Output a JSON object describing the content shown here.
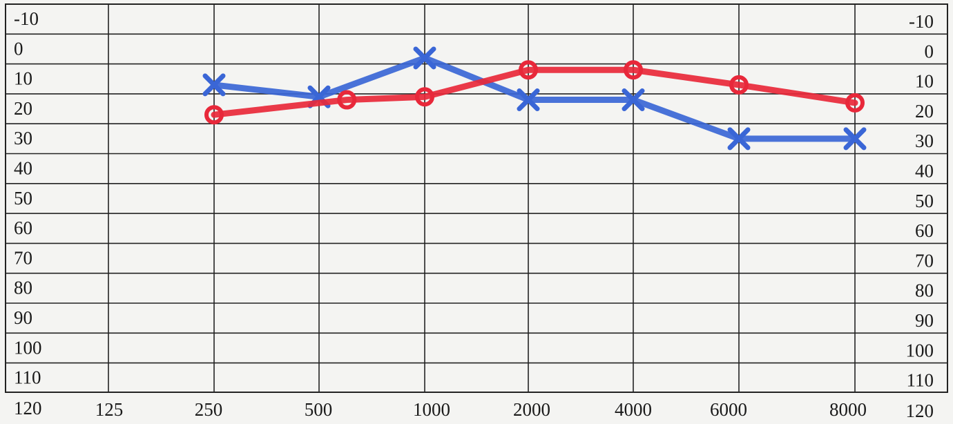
{
  "chart_data": {
    "type": "line",
    "title": "",
    "xlabel": "",
    "ylabel": "",
    "x_categories": [
      "125",
      "250",
      "500",
      "1000",
      "2000",
      "4000",
      "6000",
      "8000"
    ],
    "y_ticks": [
      "-10",
      "0",
      "10",
      "20",
      "30",
      "40",
      "50",
      "60",
      "70",
      "80",
      "90",
      "100",
      "110",
      "120"
    ],
    "ylim": [
      -10,
      120
    ],
    "y_inverted": true,
    "grid": true,
    "series": [
      {
        "marker": "x",
        "color": "#3a66d6",
        "points": [
          {
            "x": "250",
            "y": 17
          },
          {
            "x": "500",
            "y": 21
          },
          {
            "x": "1000",
            "y": 8
          },
          {
            "x": "2000",
            "y": 22
          },
          {
            "x": "4000",
            "y": 22
          },
          {
            "x": "6000",
            "y": 35
          },
          {
            "x": "8000",
            "y": 35
          }
        ]
      },
      {
        "marker": "o",
        "color": "#e8283a",
        "points": [
          {
            "x": "250",
            "y": 27
          },
          {
            "x": "600",
            "y": 22
          },
          {
            "x": "1000",
            "y": 21
          },
          {
            "x": "2000",
            "y": 12
          },
          {
            "x": "4000",
            "y": 12
          },
          {
            "x": "6000",
            "y": 17
          },
          {
            "x": "8000",
            "y": 23
          }
        ]
      }
    ]
  }
}
